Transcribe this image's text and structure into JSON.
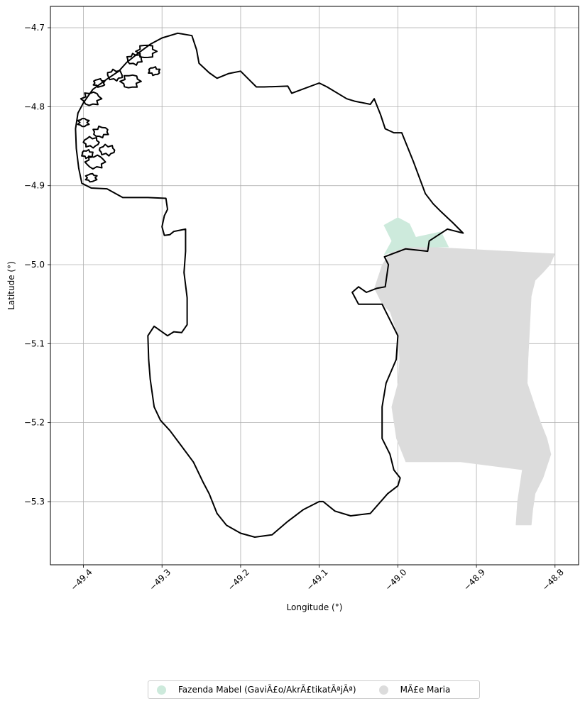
{
  "chart_data": {
    "type": "map",
    "xlabel": "Longitude (°)",
    "ylabel": "Latitude (°)",
    "xlim": [
      -49.442,
      -48.77
    ],
    "ylim": [
      -5.38,
      -4.673
    ],
    "x_ticks": [
      -49.4,
      -49.3,
      -49.2,
      -49.1,
      -49.0,
      -48.9,
      -48.8
    ],
    "x_tick_labels": [
      "−49.4",
      "−49.3",
      "−49.2",
      "−49.1",
      "−49.0",
      "−48.9",
      "−48.8"
    ],
    "y_ticks": [
      -4.7,
      -4.8,
      -4.9,
      -5.0,
      -5.1,
      -5.2,
      -5.3
    ],
    "y_tick_labels": [
      "−4.7",
      "−4.8",
      "−4.9",
      "−5.0",
      "−5.1",
      "−5.2",
      "−5.3"
    ],
    "grid": true,
    "legend_position": "bottom-center",
    "colors": {
      "fazenda": "#cdeadc",
      "mae_maria": "#dcdcdc",
      "boundary": "#000000",
      "grid": "#b0b0b0"
    },
    "series": [
      {
        "name": "Fazenda Mabel (GaviÃ£o/AkrÃ£tikatÃªjÃª)",
        "key": "fazenda"
      },
      {
        "name": "MÃ£e Maria",
        "key": "mae_maria"
      }
    ],
    "regions": {
      "boundary": [
        [
          -49.402,
          -4.897
        ],
        [
          -49.406,
          -4.878
        ],
        [
          -49.409,
          -4.853
        ],
        [
          -49.41,
          -4.828
        ],
        [
          -49.407,
          -4.808
        ],
        [
          -49.4,
          -4.795
        ],
        [
          -49.388,
          -4.778
        ],
        [
          -49.37,
          -4.765
        ],
        [
          -49.355,
          -4.755
        ],
        [
          -49.345,
          -4.744
        ],
        [
          -49.33,
          -4.732
        ],
        [
          -49.315,
          -4.721
        ],
        [
          -49.3,
          -4.713
        ],
        [
          -49.28,
          -4.707
        ],
        [
          -49.262,
          -4.71
        ],
        [
          -49.256,
          -4.728
        ],
        [
          -49.253,
          -4.745
        ],
        [
          -49.24,
          -4.757
        ],
        [
          -49.23,
          -4.764
        ],
        [
          -49.215,
          -4.758
        ],
        [
          -49.2,
          -4.755
        ],
        [
          -49.19,
          -4.765
        ],
        [
          -49.18,
          -4.775
        ],
        [
          -49.17,
          -4.775
        ],
        [
          -49.14,
          -4.774
        ],
        [
          -49.135,
          -4.783
        ],
        [
          -49.1,
          -4.77
        ],
        [
          -49.09,
          -4.775
        ],
        [
          -49.065,
          -4.79
        ],
        [
          -49.055,
          -4.793
        ],
        [
          -49.035,
          -4.797
        ],
        [
          -49.03,
          -4.79
        ],
        [
          -49.022,
          -4.81
        ],
        [
          -49.016,
          -4.828
        ],
        [
          -49.005,
          -4.833
        ],
        [
          -48.995,
          -4.833
        ],
        [
          -48.98,
          -4.87
        ],
        [
          -48.965,
          -4.91
        ],
        [
          -48.955,
          -4.923
        ],
        [
          -48.945,
          -4.933
        ],
        [
          -48.93,
          -4.947
        ],
        [
          -48.917,
          -4.96
        ],
        [
          -48.937,
          -4.955
        ],
        [
          -48.96,
          -4.97
        ],
        [
          -48.962,
          -4.983
        ],
        [
          -48.99,
          -4.98
        ],
        [
          -49.017,
          -4.99
        ],
        [
          -49.012,
          -5.0
        ],
        [
          -49.016,
          -5.028
        ],
        [
          -49.027,
          -5.03
        ],
        [
          -49.04,
          -5.035
        ],
        [
          -49.05,
          -5.028
        ],
        [
          -49.058,
          -5.035
        ],
        [
          -49.05,
          -5.05
        ],
        [
          -49.03,
          -5.05
        ],
        [
          -49.02,
          -5.05
        ],
        [
          -49.01,
          -5.07
        ],
        [
          -49.0,
          -5.09
        ],
        [
          -49.002,
          -5.12
        ],
        [
          -49.015,
          -5.15
        ],
        [
          -49.02,
          -5.18
        ],
        [
          -49.02,
          -5.22
        ],
        [
          -49.01,
          -5.24
        ],
        [
          -49.005,
          -5.26
        ],
        [
          -48.997,
          -5.27
        ],
        [
          -49.0,
          -5.28
        ],
        [
          -49.013,
          -5.29
        ],
        [
          -49.035,
          -5.315
        ],
        [
          -49.06,
          -5.318
        ],
        [
          -49.08,
          -5.312
        ],
        [
          -49.095,
          -5.3
        ],
        [
          -49.1,
          -5.3
        ],
        [
          -49.12,
          -5.31
        ],
        [
          -49.14,
          -5.325
        ],
        [
          -49.16,
          -5.342
        ],
        [
          -49.182,
          -5.345
        ],
        [
          -49.2,
          -5.34
        ],
        [
          -49.218,
          -5.33
        ],
        [
          -49.23,
          -5.315
        ],
        [
          -49.24,
          -5.29
        ],
        [
          -49.248,
          -5.275
        ],
        [
          -49.26,
          -5.25
        ],
        [
          -49.275,
          -5.23
        ],
        [
          -49.29,
          -5.21
        ],
        [
          -49.302,
          -5.197
        ],
        [
          -49.31,
          -5.18
        ],
        [
          -49.315,
          -5.145
        ],
        [
          -49.317,
          -5.12
        ],
        [
          -49.318,
          -5.09
        ],
        [
          -49.31,
          -5.078
        ],
        [
          -49.293,
          -5.09
        ],
        [
          -49.285,
          -5.085
        ],
        [
          -49.275,
          -5.086
        ],
        [
          -49.268,
          -5.076
        ],
        [
          -49.268,
          -5.042
        ],
        [
          -49.272,
          -5.01
        ],
        [
          -49.27,
          -4.983
        ],
        [
          -49.27,
          -4.955
        ],
        [
          -49.285,
          -4.958
        ],
        [
          -49.29,
          -4.962
        ],
        [
          -49.297,
          -4.963
        ],
        [
          -49.3,
          -4.952
        ],
        [
          -49.297,
          -4.938
        ],
        [
          -49.293,
          -4.93
        ],
        [
          -49.295,
          -4.916
        ],
        [
          -49.318,
          -4.915
        ],
        [
          -49.35,
          -4.915
        ],
        [
          -49.37,
          -4.904
        ],
        [
          -49.39,
          -4.903
        ],
        [
          -49.402,
          -4.897
        ]
      ],
      "fazenda": [
        [
          -49.018,
          -4.95
        ],
        [
          -49.0,
          -4.94
        ],
        [
          -48.985,
          -4.948
        ],
        [
          -48.977,
          -4.965
        ],
        [
          -48.945,
          -4.958
        ],
        [
          -48.935,
          -4.978
        ],
        [
          -48.99,
          -4.978
        ],
        [
          -49.018,
          -4.988
        ],
        [
          -49.008,
          -4.97
        ]
      ],
      "mae_maria": [
        [
          -49.01,
          -4.985
        ],
        [
          -48.99,
          -4.978
        ],
        [
          -48.95,
          -4.978
        ],
        [
          -48.8,
          -4.986
        ],
        [
          -48.806,
          -5.0
        ],
        [
          -48.815,
          -5.01
        ],
        [
          -48.825,
          -5.02
        ],
        [
          -48.83,
          -5.04
        ],
        [
          -48.832,
          -5.08
        ],
        [
          -48.834,
          -5.12
        ],
        [
          -48.835,
          -5.15
        ],
        [
          -48.825,
          -5.18
        ],
        [
          -48.818,
          -5.2
        ],
        [
          -48.81,
          -5.22
        ],
        [
          -48.805,
          -5.24
        ],
        [
          -48.815,
          -5.27
        ],
        [
          -48.825,
          -5.29
        ],
        [
          -48.828,
          -5.31
        ],
        [
          -48.83,
          -5.33
        ],
        [
          -48.85,
          -5.33
        ],
        [
          -48.848,
          -5.3
        ],
        [
          -48.842,
          -5.26
        ],
        [
          -48.92,
          -5.25
        ],
        [
          -48.99,
          -5.25
        ],
        [
          -49.002,
          -5.22
        ],
        [
          -49.008,
          -5.18
        ],
        [
          -49.0,
          -5.15
        ],
        [
          -48.998,
          -5.12
        ],
        [
          -49.0,
          -5.09
        ],
        [
          -49.01,
          -5.06
        ],
        [
          -49.02,
          -5.05
        ],
        [
          -49.03,
          -5.03
        ],
        [
          -49.02,
          -5.0
        ]
      ],
      "coast_clusters": [
        [
          -49.4,
          -4.82
        ],
        [
          -49.39,
          -4.845
        ],
        [
          -49.385,
          -4.87
        ],
        [
          -49.39,
          -4.89
        ],
        [
          -49.37,
          -4.855
        ],
        [
          -49.39,
          -4.79
        ],
        [
          -49.38,
          -4.77
        ],
        [
          -49.36,
          -4.76
        ],
        [
          -49.34,
          -4.768
        ],
        [
          -49.31,
          -4.755
        ],
        [
          -49.335,
          -4.74
        ],
        [
          -49.32,
          -4.73
        ],
        [
          -49.395,
          -4.86
        ],
        [
          -49.378,
          -4.832
        ]
      ]
    }
  }
}
